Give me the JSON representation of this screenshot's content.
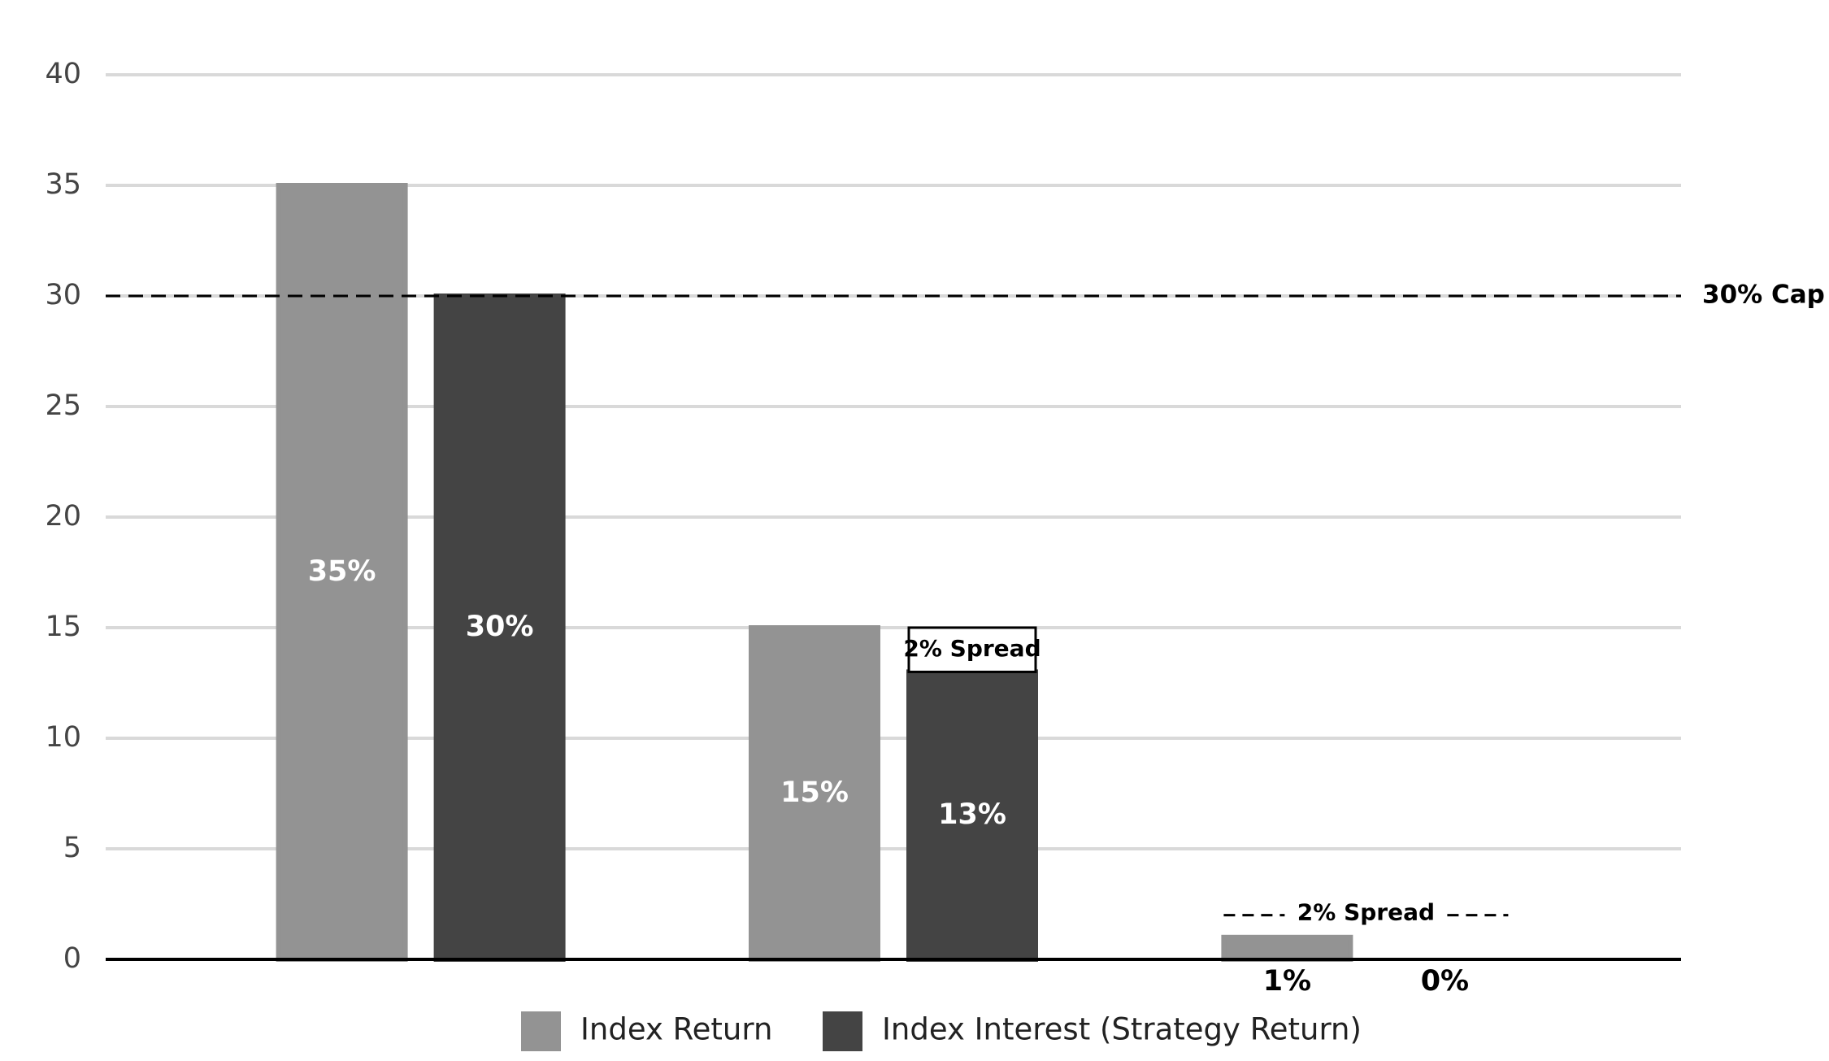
{
  "chart_data": {
    "type": "bar",
    "categories": [
      null,
      null,
      null
    ],
    "series": [
      {
        "name": "Index Return",
        "color": "#939393",
        "values": [
          35,
          15,
          1
        ],
        "value_labels": [
          "35%",
          "15%",
          "1%"
        ]
      },
      {
        "name": "Index Interest (Strategy Return)",
        "color": "#444444",
        "values": [
          30,
          13,
          0
        ],
        "value_labels": [
          "30%",
          "13%",
          "0%"
        ]
      }
    ],
    "ylim": [
      0,
      40
    ],
    "yticks": [
      0,
      5,
      10,
      15,
      20,
      25,
      30,
      35,
      40
    ],
    "grid": true,
    "legend": "bottom",
    "reference_lines": [
      {
        "value": 30,
        "label": "30% Cap"
      }
    ],
    "annotations": [
      {
        "text": "2% Spread",
        "category": 1,
        "from": 13,
        "to": 15,
        "style": "box"
      },
      {
        "text": "2% Spread",
        "category": 2,
        "at": 2,
        "style": "dashed"
      }
    ]
  }
}
